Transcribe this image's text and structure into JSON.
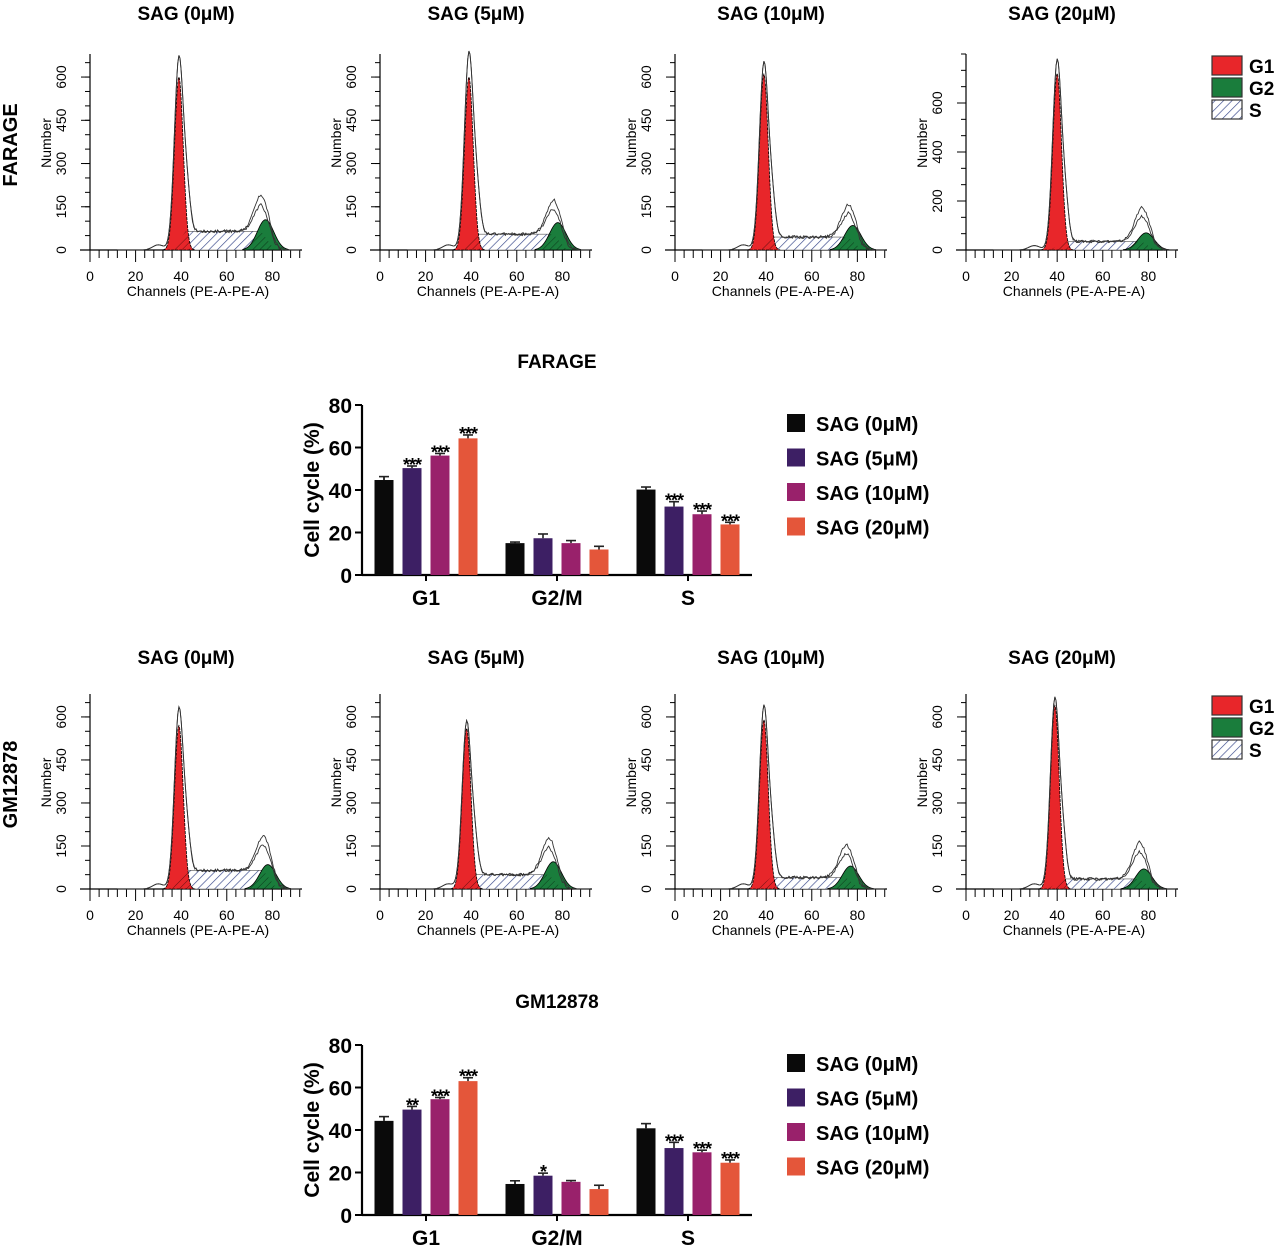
{
  "colors": {
    "g1": "#e8262a",
    "g2": "#1a7d3c",
    "s_hatch": "#3a4a8c",
    "axis": "#000000",
    "series": [
      "#0a0a0a",
      "#3d1f64",
      "#99216b",
      "#e4563a"
    ]
  },
  "histogram_legend": [
    {
      "label": "G1",
      "kind": "g1"
    },
    {
      "label": "G2",
      "kind": "g2"
    },
    {
      "label": "S",
      "kind": "s"
    }
  ],
  "chart_data": [
    {
      "type": "histogram",
      "panel": "FARAGE",
      "row_label": "FARAGE",
      "xlabel": "Channels (PE-A-PE-A)",
      "ylabel": "Number",
      "xticks": [
        0,
        20,
        40,
        60,
        80
      ],
      "xlim": [
        0,
        93
      ],
      "plots": [
        {
          "title": "SAG (0μM)",
          "yticks": [
            0,
            150,
            300,
            450,
            600
          ],
          "ylim": [
            0,
            680
          ],
          "g1_peak": 600,
          "g1_center": 39,
          "g2_peak": 105,
          "g2_center": 77,
          "s_level": 65,
          "total_peak": 640,
          "g2_total": 160
        },
        {
          "title": "SAG (5μM)",
          "yticks": [
            0,
            150,
            300,
            450,
            600
          ],
          "ylim": [
            0,
            680
          ],
          "g1_peak": 600,
          "g1_center": 39,
          "g2_peak": 95,
          "g2_center": 78,
          "s_level": 55,
          "total_peak": 660,
          "g2_total": 150
        },
        {
          "title": "SAG (10μM)",
          "yticks": [
            0,
            150,
            300,
            450,
            600
          ],
          "ylim": [
            0,
            680
          ],
          "g1_peak": 610,
          "g1_center": 39,
          "g2_peak": 85,
          "g2_center": 78,
          "s_level": 45,
          "total_peak": 630,
          "g2_total": 140
        },
        {
          "title": "SAG (20μM)",
          "yticks": [
            0,
            200,
            400,
            600
          ],
          "ylim": [
            0,
            800
          ],
          "g1_peak": 720,
          "g1_center": 40,
          "g2_peak": 70,
          "g2_center": 79,
          "s_level": 35,
          "total_peak": 760,
          "g2_total": 160
        }
      ]
    },
    {
      "type": "bar",
      "title": "FARAGE",
      "xlabel": "",
      "ylabel": "Cell cycle (%)",
      "ylim": [
        0,
        80
      ],
      "yticks": [
        0,
        20,
        40,
        60,
        80
      ],
      "categories": [
        "G1",
        "G2/M",
        "S"
      ],
      "legend_position": "right",
      "series": [
        {
          "name": "SAG (0μM)",
          "values": [
            44.7,
            15.0,
            40.2
          ],
          "errors": [
            1.6,
            0.5,
            1.2
          ],
          "significance": [
            "",
            "",
            ""
          ]
        },
        {
          "name": "SAG (5μM)",
          "values": [
            50.3,
            17.3,
            32.2
          ],
          "errors": [
            1.0,
            2.0,
            2.3
          ],
          "significance": [
            "***",
            "",
            "***"
          ]
        },
        {
          "name": "SAG (10μM)",
          "values": [
            56.2,
            15.0,
            28.6
          ],
          "errors": [
            1.0,
            1.2,
            1.5
          ],
          "significance": [
            "***",
            "",
            "***"
          ]
        },
        {
          "name": "SAG (20μM)",
          "values": [
            64.3,
            12.0,
            23.8
          ],
          "errors": [
            1.6,
            1.5,
            1.0
          ],
          "significance": [
            "***",
            "",
            "***"
          ]
        }
      ]
    },
    {
      "type": "histogram",
      "panel": "GM12878",
      "row_label": "GM12878",
      "xlabel": "Channels (PE-A-PE-A)",
      "ylabel": "Number",
      "xticks": [
        0,
        20,
        40,
        60,
        80
      ],
      "xlim": [
        0,
        93
      ],
      "plots": [
        {
          "title": "SAG (0μM)",
          "yticks": [
            0,
            150,
            300,
            450,
            600
          ],
          "ylim": [
            0,
            680
          ],
          "g1_peak": 570,
          "g1_center": 39,
          "g2_peak": 85,
          "g2_center": 78,
          "s_level": 65,
          "total_peak": 600,
          "g2_total": 150
        },
        {
          "title": "SAG (5μM)",
          "yticks": [
            0,
            150,
            300,
            450,
            600
          ],
          "ylim": [
            0,
            680
          ],
          "g1_peak": 560,
          "g1_center": 38,
          "g2_peak": 95,
          "g2_center": 76,
          "s_level": 50,
          "total_peak": 560,
          "g2_total": 160
        },
        {
          "title": "SAG (10μM)",
          "yticks": [
            0,
            150,
            300,
            450,
            600
          ],
          "ylim": [
            0,
            680
          ],
          "g1_peak": 590,
          "g1_center": 39,
          "g2_peak": 80,
          "g2_center": 77,
          "s_level": 40,
          "total_peak": 620,
          "g2_total": 140
        },
        {
          "title": "SAG (20μM)",
          "yticks": [
            0,
            150,
            300,
            450,
            600
          ],
          "ylim": [
            0,
            680
          ],
          "g1_peak": 640,
          "g1_center": 39,
          "g2_peak": 70,
          "g2_center": 78,
          "s_level": 35,
          "total_peak": 650,
          "g2_total": 150
        }
      ]
    },
    {
      "type": "bar",
      "title": "GM12878",
      "xlabel": "",
      "ylabel": "Cell cycle (%)",
      "ylim": [
        0,
        80
      ],
      "yticks": [
        0,
        20,
        40,
        60,
        80
      ],
      "categories": [
        "G1",
        "G2/M",
        "S"
      ],
      "legend_position": "right",
      "series": [
        {
          "name": "SAG (0μM)",
          "values": [
            44.3,
            14.6,
            40.8
          ],
          "errors": [
            2.0,
            1.5,
            2.2
          ],
          "significance": [
            "",
            "",
            ""
          ]
        },
        {
          "name": "SAG (5μM)",
          "values": [
            49.6,
            18.5,
            31.5
          ],
          "errors": [
            1.5,
            1.2,
            2.7
          ],
          "significance": [
            "**",
            "*",
            "***"
          ]
        },
        {
          "name": "SAG (10μM)",
          "values": [
            54.5,
            15.6,
            29.5
          ],
          "errors": [
            0.8,
            0.6,
            1.0
          ],
          "significance": [
            "***",
            "",
            "***"
          ]
        },
        {
          "name": "SAG (20μM)",
          "values": [
            63.0,
            12.2,
            24.6
          ],
          "errors": [
            1.6,
            1.8,
            1.3
          ],
          "significance": [
            "***",
            "",
            "***"
          ]
        }
      ]
    }
  ]
}
